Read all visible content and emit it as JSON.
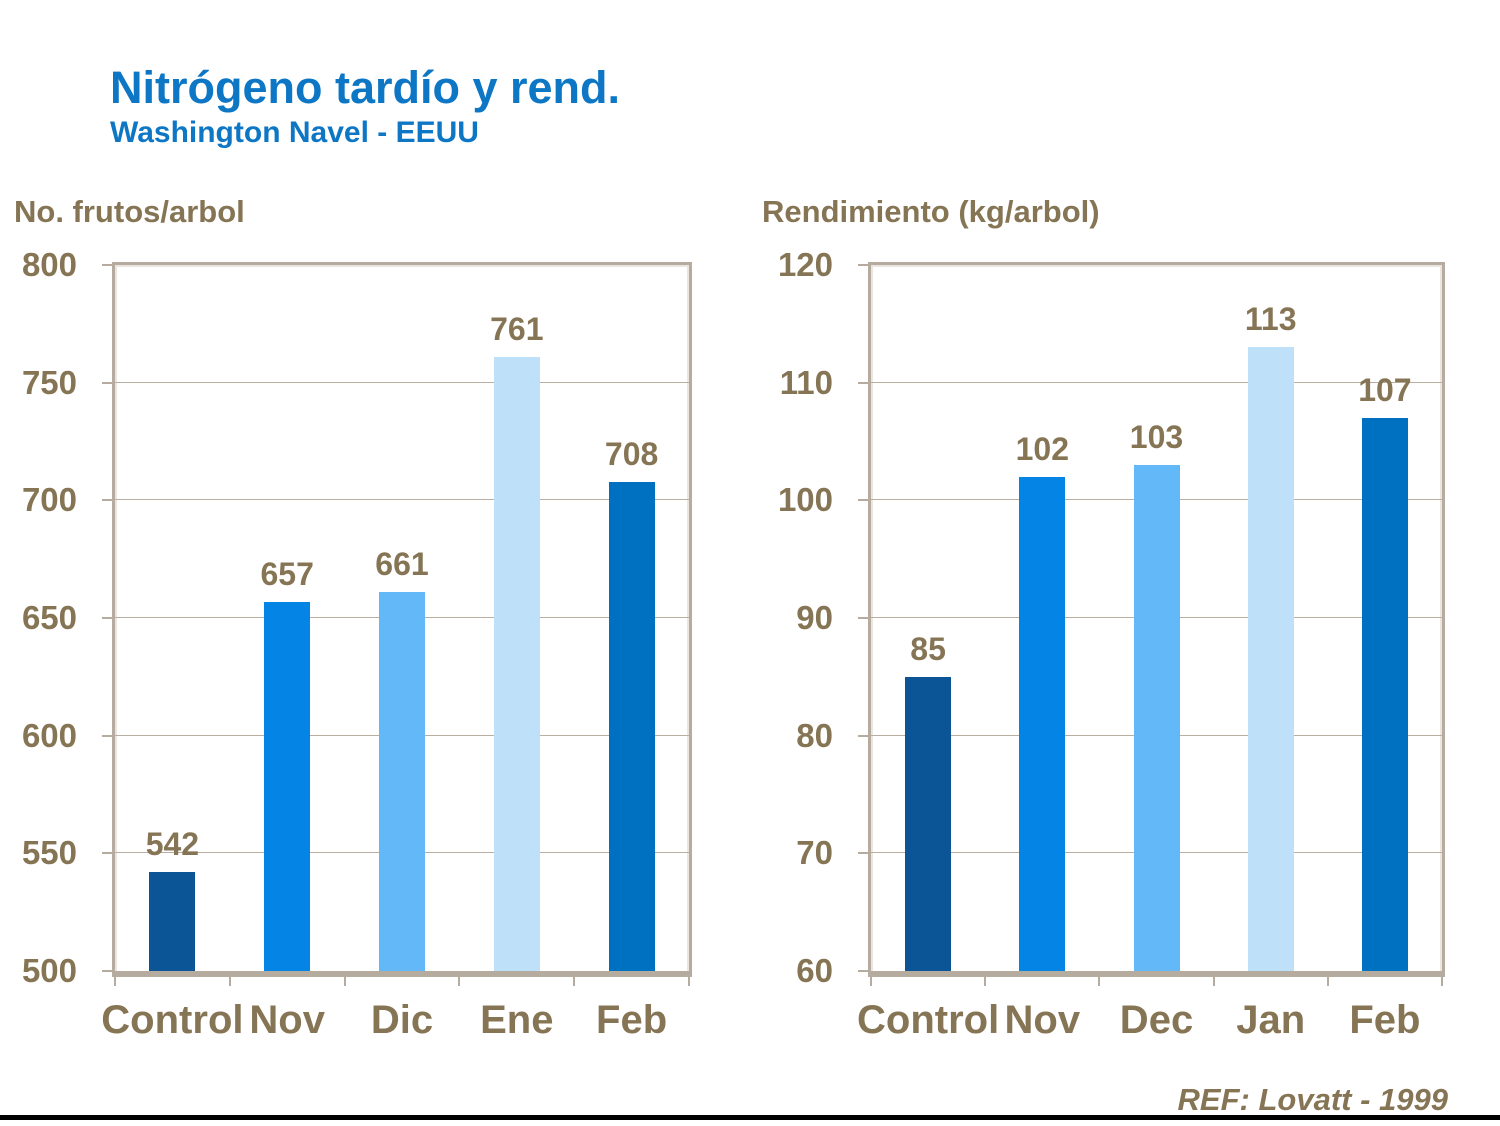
{
  "slide": {
    "title": "Nitrógeno tardío y rend.",
    "subtitle": "Washington Navel - EEUU",
    "reference": "REF: Lovatt - 1999"
  },
  "colors": {
    "title_blue": "#0d76c5",
    "axis_text_brown": "#867555",
    "plot_frame": "#b5ab9f",
    "gridline": "#b9ae9f",
    "footer_line": "#000000",
    "bar_control": "#0b5596",
    "bar_light_blue": "#0484e4",
    "bar_lighter_blue": "#63b8f7",
    "bar_pale_blue": "#bee0f9",
    "bar_medium_blue": "#0071c0"
  },
  "chart_data": [
    {
      "type": "bar",
      "title": "No. frutos/arbol",
      "categories": [
        "Control",
        "Nov",
        "Dic",
        "Ene",
        "Feb"
      ],
      "values": [
        542,
        657,
        661,
        761,
        708
      ],
      "bar_colors": [
        "#0b5596",
        "#0484e4",
        "#63b8f7",
        "#bee0f9",
        "#0071c0"
      ],
      "ylim": [
        500,
        800
      ],
      "yticks": [
        500,
        550,
        600,
        650,
        700,
        750,
        800
      ],
      "grid": true,
      "legend": "none",
      "value_labels": true
    },
    {
      "type": "bar",
      "title": "Rendimiento (kg/arbol)",
      "categories": [
        "Control",
        "Nov",
        "Dec",
        "Jan",
        "Feb"
      ],
      "values": [
        85,
        102,
        103,
        113,
        107
      ],
      "bar_colors": [
        "#0b5596",
        "#0484e4",
        "#63b8f7",
        "#bee0f9",
        "#0071c0"
      ],
      "ylim": [
        60,
        120
      ],
      "yticks": [
        60,
        70,
        80,
        90,
        100,
        110,
        120
      ],
      "grid": true,
      "legend": "none",
      "value_labels": true
    }
  ]
}
